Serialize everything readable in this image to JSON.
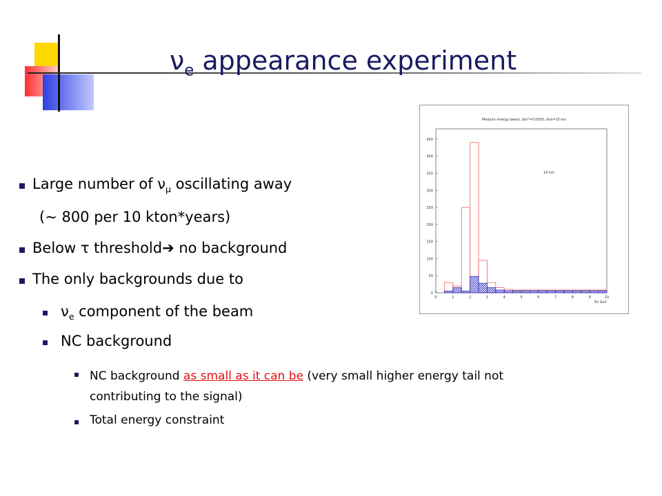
{
  "slide": {
    "title": {
      "symbol": "ν",
      "sub": "e",
      "text": "appearance experiment"
    },
    "bullets": [
      {
        "parts": [
          "Large number of ν",
          "μ",
          " oscillating away"
        ]
      },
      {
        "text": "(~ 800 per 10 kton*years)"
      },
      {
        "text": "Below τ threshold➔ no background"
      },
      {
        "text": "The only backgrounds due to"
      },
      {
        "parts": [
          "ν",
          "e",
          " component of the beam"
        ]
      },
      {
        "text": "NC background"
      },
      {
        "parts": [
          "NC background ",
          "as small as it can be",
          " (very small higher energy tail not contributing to the signal)"
        ]
      },
      {
        "text": "Total energy constraint"
      }
    ]
  },
  "chart_data": {
    "type": "histogram",
    "title": "Medium energy beam, Δm²=0.0030, dist=10 km",
    "annotation": "10 km",
    "xlabel": "Eν GeV",
    "bins": [
      0,
      0.5,
      1,
      1.5,
      2,
      2.5,
      3,
      3.5,
      4,
      4.5,
      5,
      5.5,
      6,
      6.5,
      7,
      7.5,
      8,
      8.5,
      9,
      9.5,
      10
    ],
    "series": [
      {
        "color": "#f06060",
        "values": [
          0,
          30,
          20,
          250,
          440,
          95,
          30,
          15,
          10,
          8,
          8,
          8,
          8,
          8,
          8,
          8,
          8,
          8,
          8,
          8
        ]
      },
      {
        "color": "#3030c0",
        "values": [
          0,
          5,
          15,
          5,
          48,
          28,
          15,
          8,
          6,
          6,
          6,
          6,
          6,
          6,
          6,
          6,
          6,
          6,
          6,
          6
        ]
      }
    ],
    "xlim": [
      0,
      10
    ],
    "ylim": [
      0,
      480
    ],
    "xticks": [
      0,
      1,
      2,
      3,
      4,
      5,
      6,
      7,
      8,
      9,
      10
    ],
    "yticks": [
      0,
      50,
      100,
      150,
      200,
      250,
      300,
      350,
      400,
      450
    ],
    "grid": false
  }
}
